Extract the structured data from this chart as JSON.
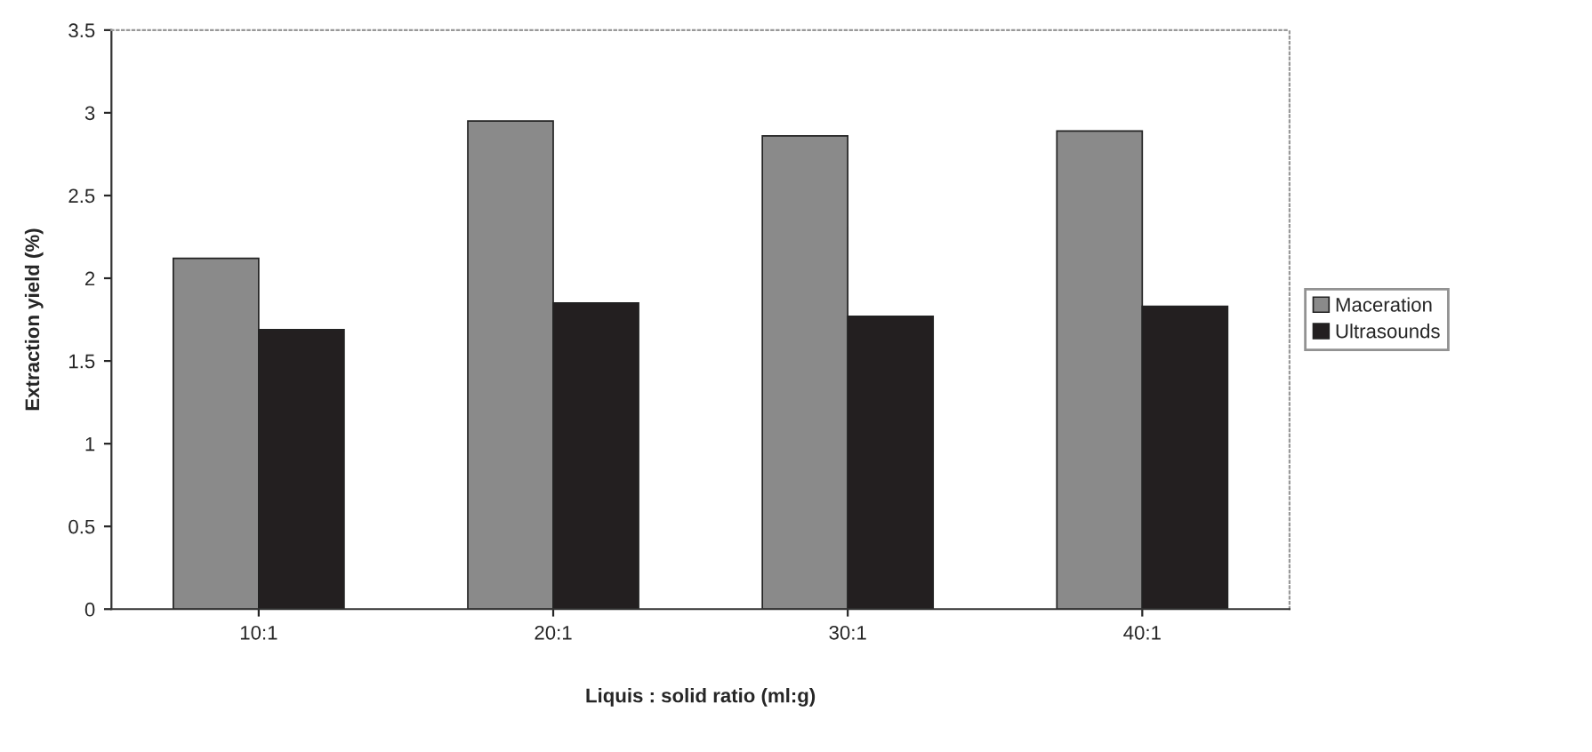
{
  "chart_data": {
    "type": "bar",
    "xlabel": "Liquis : solid ratio (ml:g)",
    "ylabel": "Extraction yield (%)",
    "categories": [
      "10:1",
      "20:1",
      "30:1",
      "40:1"
    ],
    "series": [
      {
        "name": "Maceration",
        "color": "#8a8a8a",
        "values": [
          2.12,
          2.95,
          2.86,
          2.89
        ]
      },
      {
        "name": "Ultrasounds",
        "color": "#231f20",
        "values": [
          1.69,
          1.85,
          1.77,
          1.83
        ]
      }
    ],
    "ylim": [
      0,
      3.5
    ],
    "yticks": [
      0,
      0.5,
      1,
      1.5,
      2,
      2.5,
      3,
      3.5
    ],
    "grid": false,
    "legend": "right"
  }
}
